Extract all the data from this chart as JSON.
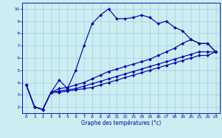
{
  "xlabel": "Graphe des températures (°c)",
  "background_color": "#cceef2",
  "line_color": "#0000bb",
  "grid_color": "#99ccdd",
  "xlim": [
    -0.5,
    23.5
  ],
  "ylim": [
    1.5,
    10.5
  ],
  "xticks": [
    0,
    1,
    2,
    3,
    4,
    5,
    6,
    7,
    8,
    9,
    10,
    11,
    12,
    13,
    14,
    15,
    16,
    17,
    18,
    19,
    20,
    21,
    22,
    23
  ],
  "yticks": [
    2,
    3,
    4,
    5,
    6,
    7,
    8,
    9,
    10
  ],
  "line1_x": [
    0,
    1,
    2,
    3,
    4,
    5,
    6,
    7,
    8,
    9,
    10,
    11,
    12,
    13,
    14,
    15,
    16,
    17,
    18,
    19,
    20,
    21,
    22,
    23
  ],
  "line1_y": [
    3.8,
    2.0,
    1.8,
    3.2,
    4.2,
    3.5,
    5.0,
    7.0,
    8.8,
    9.5,
    10.0,
    9.2,
    9.2,
    9.3,
    9.5,
    9.3,
    8.8,
    9.0,
    8.5,
    8.2,
    7.5,
    7.2,
    7.2,
    6.5
  ],
  "line2_x": [
    0,
    1,
    2,
    3,
    4,
    5,
    6,
    7,
    8,
    9,
    10,
    11,
    12,
    13,
    14,
    15,
    16,
    17,
    18,
    19,
    20,
    21,
    22,
    23
  ],
  "line2_y": [
    3.8,
    2.0,
    1.8,
    3.2,
    3.5,
    3.6,
    3.8,
    4.0,
    4.3,
    4.6,
    4.9,
    5.1,
    5.3,
    5.5,
    5.7,
    5.9,
    6.2,
    6.5,
    6.8,
    7.2,
    7.5,
    7.2,
    7.2,
    6.5
  ],
  "line3_x": [
    0,
    1,
    2,
    3,
    4,
    5,
    6,
    7,
    8,
    9,
    10,
    11,
    12,
    13,
    14,
    15,
    16,
    17,
    18,
    19,
    20,
    21,
    22,
    23
  ],
  "line3_y": [
    3.8,
    2.0,
    1.8,
    3.2,
    3.3,
    3.4,
    3.5,
    3.7,
    3.9,
    4.1,
    4.3,
    4.5,
    4.7,
    4.9,
    5.1,
    5.3,
    5.5,
    5.7,
    5.9,
    6.1,
    6.3,
    6.5,
    6.5,
    6.5
  ],
  "line4_x": [
    0,
    1,
    2,
    3,
    4,
    5,
    6,
    7,
    8,
    9,
    10,
    11,
    12,
    13,
    14,
    15,
    16,
    17,
    18,
    19,
    20,
    21,
    22,
    23
  ],
  "line4_y": [
    3.8,
    2.0,
    1.8,
    3.2,
    3.2,
    3.3,
    3.4,
    3.5,
    3.6,
    3.8,
    4.0,
    4.2,
    4.4,
    4.6,
    4.8,
    5.0,
    5.2,
    5.4,
    5.6,
    5.8,
    6.0,
    6.2,
    6.2,
    6.5
  ],
  "marker_line1_x": [
    0,
    1,
    2,
    3,
    4,
    5,
    6,
    7,
    8,
    9,
    10,
    11,
    12,
    13,
    14,
    15,
    16,
    17,
    18,
    19,
    20,
    21,
    22,
    23
  ],
  "marker_line1_y": [
    3.8,
    2.0,
    1.8,
    3.2,
    4.2,
    3.5,
    5.0,
    7.0,
    8.8,
    9.5,
    10.0,
    9.2,
    9.2,
    9.3,
    9.5,
    9.3,
    8.8,
    9.0,
    8.5,
    8.2,
    7.5,
    7.2,
    7.2,
    6.5
  ],
  "marker_line2_x": [
    19,
    20,
    21,
    22,
    23
  ],
  "marker_line2_y": [
    7.2,
    7.5,
    7.2,
    7.2,
    6.5
  ]
}
